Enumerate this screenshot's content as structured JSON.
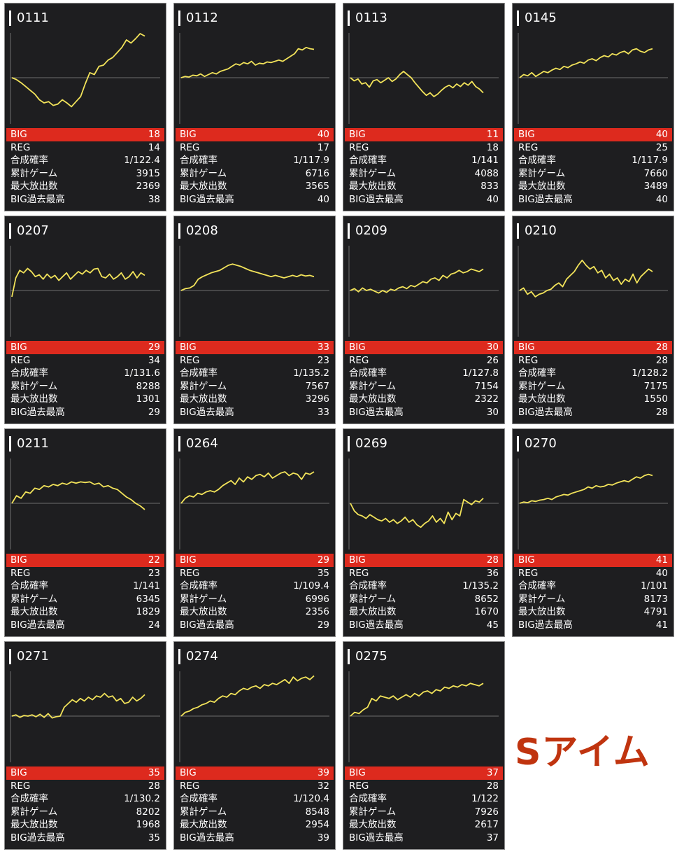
{
  "colors": {
    "big_bar": "#dd2a1e",
    "line": "#f2e35a",
    "panel": "#1e1e20",
    "brand": "#c0340f"
  },
  "labels": {
    "big": "BIG",
    "reg": "REG",
    "rate": "合成確率",
    "games": "累計ゲーム",
    "max": "最大放出数",
    "best": "BIG過去最高"
  },
  "brand": "Sアイム",
  "machines": [
    {
      "id": "0111",
      "big": "18",
      "reg": "14",
      "rate": "1/122.4",
      "games": "3915",
      "max": "2369",
      "best": "38",
      "trend": [
        0,
        -3,
        -8,
        -14,
        -20,
        -26,
        -35,
        -40,
        -38,
        -44,
        -42,
        -35,
        -40,
        -46,
        -38,
        -30,
        -10,
        8,
        5,
        18,
        20,
        28,
        32,
        40,
        48,
        60,
        55,
        62,
        70,
        66
      ]
    },
    {
      "id": "0112",
      "big": "40",
      "reg": "17",
      "rate": "1/117.9",
      "games": "6716",
      "max": "3565",
      "best": "40",
      "trend": [
        0,
        2,
        1,
        4,
        3,
        6,
        2,
        5,
        8,
        6,
        10,
        12,
        14,
        18,
        22,
        20,
        24,
        22,
        26,
        20,
        23,
        22,
        25,
        24,
        26,
        28,
        26,
        30,
        34,
        38,
        46,
        44,
        48,
        46,
        45
      ]
    },
    {
      "id": "0113",
      "big": "11",
      "reg": "18",
      "rate": "1/141",
      "games": "4088",
      "max": "833",
      "best": "40",
      "trend": [
        0,
        -5,
        -2,
        -10,
        -8,
        -15,
        -5,
        -3,
        -8,
        -4,
        0,
        -6,
        -2,
        5,
        10,
        5,
        0,
        -8,
        -15,
        -22,
        -28,
        -24,
        -30,
        -26,
        -20,
        -15,
        -12,
        -16,
        -10,
        -14,
        -8,
        -12,
        -6,
        -14,
        -18,
        -24
      ]
    },
    {
      "id": "0145",
      "big": "40",
      "reg": "25",
      "rate": "1/117.9",
      "games": "7660",
      "max": "3489",
      "best": "40",
      "trend": [
        0,
        5,
        3,
        8,
        2,
        6,
        10,
        8,
        12,
        15,
        13,
        18,
        16,
        20,
        22,
        25,
        23,
        28,
        30,
        27,
        32,
        35,
        33,
        38,
        36,
        40,
        42,
        38,
        44,
        46,
        42,
        40,
        44,
        46
      ]
    },
    {
      "id": "0207",
      "big": "29",
      "reg": "34",
      "rate": "1/131.6",
      "games": "8288",
      "max": "1301",
      "best": "29",
      "trend": [
        -10,
        20,
        32,
        28,
        35,
        30,
        22,
        25,
        18,
        26,
        20,
        24,
        16,
        22,
        28,
        18,
        24,
        30,
        26,
        32,
        28,
        34,
        35,
        22,
        20,
        26,
        18,
        22,
        28,
        18,
        22,
        30,
        20,
        28,
        24
      ]
    },
    {
      "id": "0208",
      "big": "33",
      "reg": "23",
      "rate": "1/135.2",
      "games": "7567",
      "max": "3296",
      "best": "33",
      "trend": [
        0,
        3,
        4,
        8,
        18,
        22,
        25,
        28,
        30,
        32,
        36,
        40,
        42,
        40,
        38,
        35,
        32,
        30,
        28,
        26,
        24,
        22,
        24,
        22,
        20,
        22,
        24,
        22,
        25,
        23,
        24,
        22
      ]
    },
    {
      "id": "0209",
      "big": "30",
      "reg": "26",
      "rate": "1/127.8",
      "games": "7154",
      "max": "2322",
      "best": "30",
      "trend": [
        0,
        3,
        -2,
        4,
        0,
        2,
        -1,
        -4,
        0,
        -3,
        2,
        0,
        4,
        6,
        3,
        8,
        6,
        10,
        14,
        12,
        18,
        20,
        16,
        24,
        20,
        26,
        28,
        32,
        28,
        30,
        34,
        32,
        30,
        34
      ]
    },
    {
      "id": "0210",
      "big": "28",
      "reg": "28",
      "rate": "1/128.2",
      "games": "7175",
      "max": "1550",
      "best": "28",
      "trend": [
        0,
        4,
        -6,
        -2,
        -10,
        -6,
        -4,
        0,
        2,
        8,
        12,
        6,
        18,
        24,
        30,
        40,
        48,
        40,
        34,
        38,
        28,
        32,
        20,
        26,
        16,
        20,
        10,
        18,
        14,
        26,
        12,
        22,
        28,
        34,
        30
      ]
    },
    {
      "id": "0211",
      "big": "22",
      "reg": "23",
      "rate": "1/141",
      "games": "6345",
      "max": "1829",
      "best": "24",
      "trend": [
        0,
        12,
        8,
        18,
        16,
        24,
        22,
        28,
        26,
        30,
        28,
        32,
        30,
        34,
        32,
        34,
        33,
        34,
        30,
        32,
        26,
        28,
        24,
        22,
        16,
        10,
        6,
        0,
        -4,
        -10
      ]
    },
    {
      "id": "0264",
      "big": "29",
      "reg": "35",
      "rate": "1/109.4",
      "games": "6996",
      "max": "2356",
      "best": "29",
      "trend": [
        0,
        8,
        12,
        10,
        16,
        14,
        18,
        20,
        18,
        22,
        28,
        32,
        36,
        30,
        40,
        34,
        42,
        38,
        44,
        46,
        42,
        48,
        40,
        44,
        48,
        50,
        44,
        48,
        46,
        38,
        48,
        46,
        50
      ]
    },
    {
      "id": "0269",
      "big": "28",
      "reg": "36",
      "rate": "1/135.2",
      "games": "8652",
      "max": "1670",
      "best": "45",
      "trend": [
        0,
        -12,
        -18,
        -20,
        -24,
        -18,
        -22,
        -26,
        -28,
        -24,
        -30,
        -26,
        -32,
        -28,
        -22,
        -30,
        -26,
        -34,
        -38,
        -32,
        -28,
        -20,
        -30,
        -24,
        -32,
        -14,
        -26,
        -16,
        -20,
        6,
        2,
        -2,
        4,
        2,
        8
      ]
    },
    {
      "id": "0270",
      "big": "41",
      "reg": "40",
      "rate": "1/101",
      "games": "8173",
      "max": "4791",
      "best": "41",
      "trend": [
        0,
        2,
        1,
        4,
        3,
        5,
        6,
        8,
        6,
        10,
        12,
        14,
        13,
        16,
        18,
        20,
        22,
        26,
        24,
        28,
        26,
        27,
        30,
        29,
        32,
        34,
        36,
        34,
        38,
        42,
        40,
        44,
        46,
        44
      ]
    },
    {
      "id": "0271",
      "big": "35",
      "reg": "28",
      "rate": "1/130.2",
      "games": "8202",
      "max": "1968",
      "best": "35",
      "trend": [
        0,
        2,
        -2,
        1,
        0,
        2,
        -1,
        3,
        -2,
        4,
        -3,
        -1,
        0,
        14,
        20,
        26,
        22,
        28,
        24,
        30,
        26,
        32,
        30,
        36,
        30,
        32,
        24,
        28,
        20,
        22,
        30,
        24,
        28,
        34
      ]
    },
    {
      "id": "0274",
      "big": "39",
      "reg": "32",
      "rate": "1/120.4",
      "games": "8548",
      "max": "2954",
      "best": "39",
      "trend": [
        0,
        6,
        8,
        12,
        14,
        18,
        20,
        24,
        22,
        28,
        32,
        30,
        36,
        34,
        40,
        44,
        42,
        46,
        48,
        44,
        50,
        48,
        52,
        50,
        54,
        58,
        52,
        62,
        56,
        60,
        62,
        58,
        64
      ]
    },
    {
      "id": "0275",
      "big": "37",
      "reg": "28",
      "rate": "1/122",
      "games": "7926",
      "max": "2617",
      "best": "37",
      "trend": [
        0,
        6,
        4,
        10,
        14,
        28,
        24,
        32,
        30,
        28,
        32,
        26,
        30,
        34,
        30,
        36,
        32,
        38,
        40,
        36,
        42,
        40,
        46,
        44,
        48,
        46,
        50,
        48,
        52,
        50,
        48,
        52
      ]
    }
  ]
}
